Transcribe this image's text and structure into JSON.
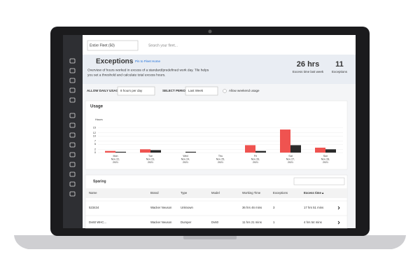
{
  "topbar": {
    "fleet_select": "Entire Fleet (50)",
    "search_placeholder": "Search your fleet..."
  },
  "header": {
    "title": "Exceptions",
    "pin_link": "Pin to Fleet Home",
    "description": [
      "Overview of hours worked in excess of a standard/predefined work day. Tile helps",
      "you set a threshold and calculate total excess hours."
    ],
    "stats": [
      {
        "value": "26 hrs",
        "label": "Excess time last week"
      },
      {
        "value": "11",
        "label": "Exceptions"
      }
    ]
  },
  "filters": {
    "daily_usage_label": "ALLOW DAILY USAGE",
    "daily_usage_value": "8 hours per day",
    "period_label": "SELECT PERIOD",
    "period_value": "Last Week",
    "weekend_label": "Allow weekend usage"
  },
  "chart_data": {
    "type": "bar",
    "title": "Usage",
    "y_label": "Hours",
    "categories": [
      [
        "Mon",
        "Nov 22,",
        "2021"
      ],
      [
        "Tue",
        "Nov 23,",
        "2021"
      ],
      [
        "Wed",
        "Nov 24,",
        "2021"
      ],
      [
        "Thu",
        "Nov 25,",
        "2021"
      ],
      [
        "Fri",
        "Nov 26,",
        "2021"
      ],
      [
        "Sat",
        "Nov 27,",
        "2021"
      ],
      [
        "Sun",
        "Nov 28,",
        "2021"
      ]
    ],
    "series": [
      {
        "color": "#ef5350",
        "values": [
          1,
          2,
          0,
          0,
          4.5,
          14,
          3
        ]
      },
      {
        "color": "#2b2b2b",
        "values": [
          0.5,
          1.5,
          0.5,
          0,
          1,
          4.5,
          2
        ]
      }
    ],
    "ylim": [
      0,
      17
    ],
    "yticks": [
      0,
      2,
      5,
      7,
      10,
      12,
      15
    ],
    "grid": true
  },
  "table": {
    "title": "Sparing",
    "columns": [
      "Name",
      "Brand",
      "Type",
      "Model",
      "Working Time",
      "Exceptions",
      "Excess time ▴"
    ],
    "rows": [
      [
        "523434",
        "Wacker Neuson",
        "Unknown",
        null,
        "36 hrs 46 mins",
        "3",
        "17 hrs 51 mins"
      ],
      [
        "Dv60 WHC...",
        "Wacker Neuson",
        "Dumper",
        "Dv60",
        "11 hrs 21 mins",
        "1",
        "4 hrs 54 mins"
      ]
    ]
  }
}
